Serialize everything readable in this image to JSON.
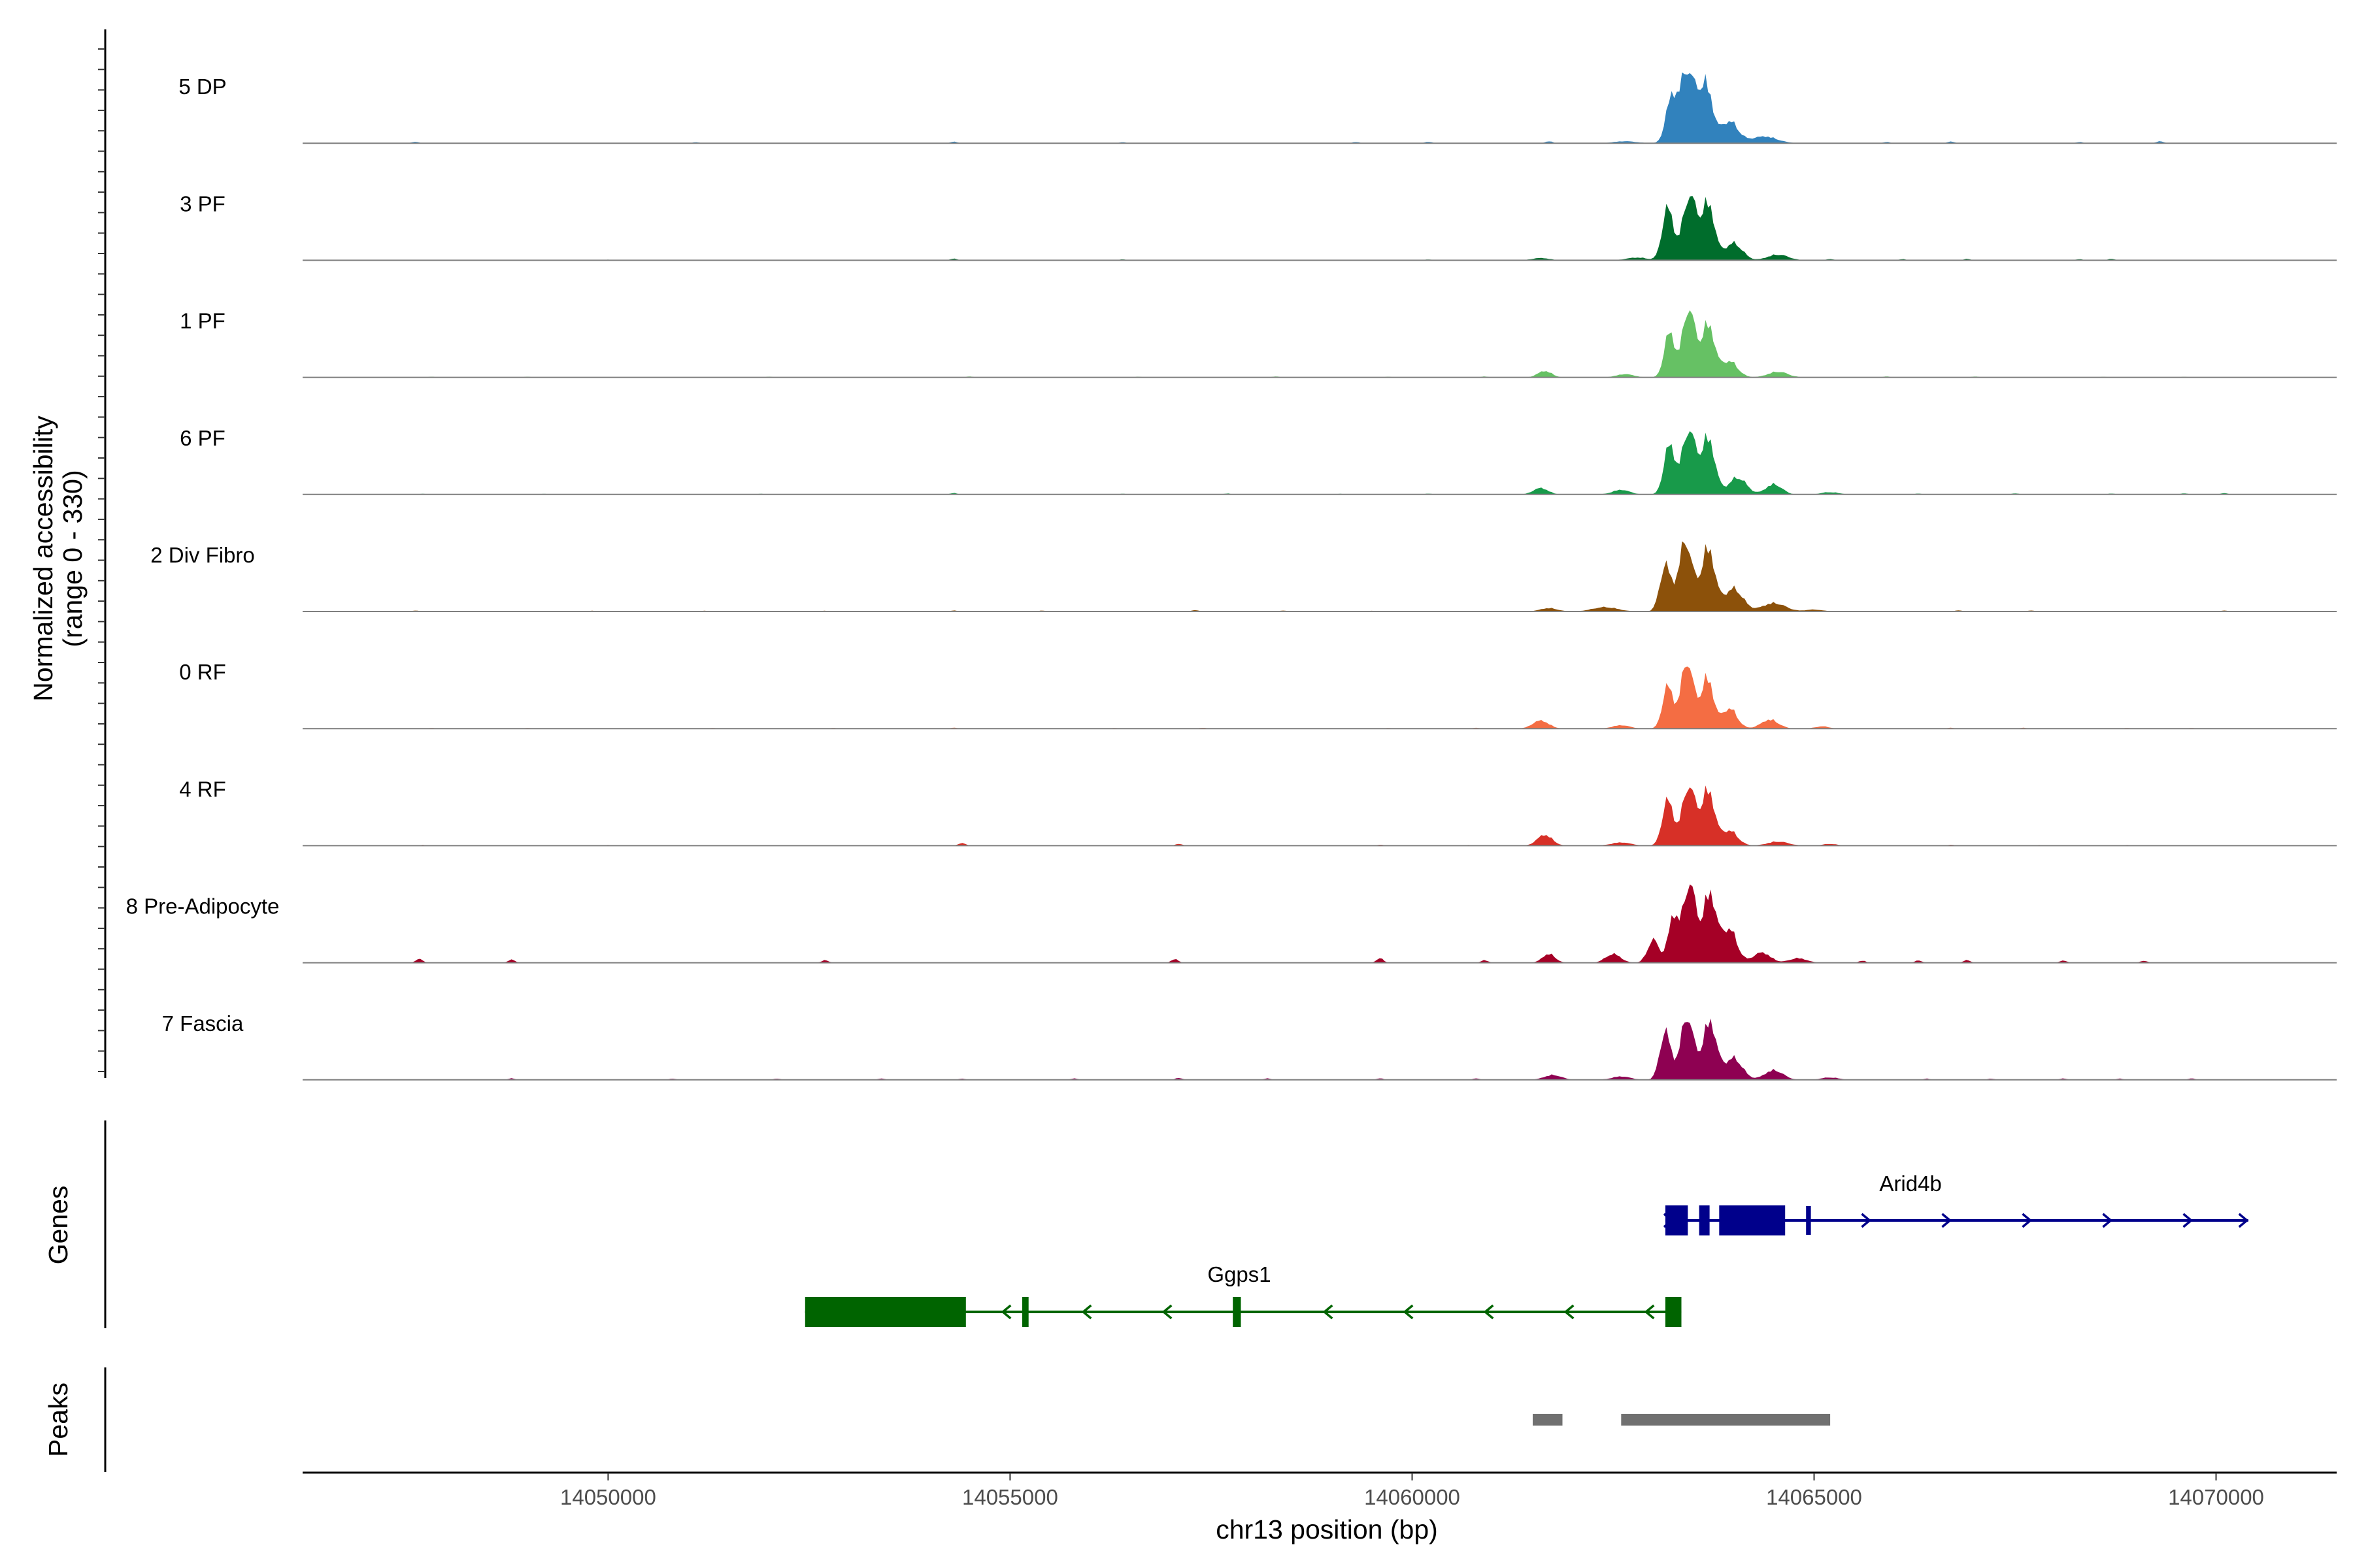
{
  "chart_data": {
    "type": "area",
    "title": "",
    "xlabel": "chr13 position (bp)",
    "ylabel": "Normalized accessibility",
    "ylabel_range": "(range 0 - 330)",
    "ylim": [
      0,
      330
    ],
    "xlim": [
      14046200,
      14071500
    ],
    "x_ticks": [
      14050000,
      14055000,
      14060000,
      14065000,
      14070000
    ],
    "x_tick_labels": [
      "14050000",
      "14055000",
      "14060000",
      "14065000",
      "14070000"
    ],
    "tracks": [
      {
        "name": "5 DP",
        "color": "#3182bd",
        "scale": 0.95,
        "peaks": [
          [
            14063220,
            170,
            95
          ],
          [
            14063420,
            300,
            130
          ],
          [
            14063650,
            240,
            120
          ],
          [
            14063950,
            90,
            150
          ],
          [
            14064380,
            28,
            220
          ],
          [
            14062650,
            8,
            200
          ]
        ],
        "small": [
          [
            14047600,
            6
          ],
          [
            14051100,
            4
          ],
          [
            14054300,
            6
          ],
          [
            14056400,
            4
          ],
          [
            14059300,
            5
          ],
          [
            14060200,
            6
          ],
          [
            14061700,
            8
          ],
          [
            14065900,
            5
          ],
          [
            14066700,
            7
          ],
          [
            14068300,
            5
          ],
          [
            14069300,
            8
          ]
        ]
      },
      {
        "name": "3 PF",
        "color": "#006d2c",
        "scale": 0.9,
        "peaks": [
          [
            14063180,
            230,
            95
          ],
          [
            14063450,
            280,
            120
          ],
          [
            14063680,
            245,
            115
          ],
          [
            14064000,
            75,
            150
          ],
          [
            14064550,
            25,
            180
          ],
          [
            14061600,
            10,
            150
          ],
          [
            14062800,
            12,
            180
          ]
        ],
        "small": [
          [
            14050000,
            3
          ],
          [
            14054300,
            7
          ],
          [
            14056400,
            4
          ],
          [
            14060200,
            4
          ],
          [
            14065200,
            6
          ],
          [
            14066100,
            5
          ],
          [
            14066900,
            6
          ],
          [
            14068300,
            5
          ],
          [
            14068700,
            6
          ]
        ]
      },
      {
        "name": "1 PF",
        "color": "#66c164",
        "scale": 0.9,
        "peaks": [
          [
            14063200,
            195,
            90
          ],
          [
            14063440,
            300,
            110
          ],
          [
            14063680,
            230,
            115
          ],
          [
            14063950,
            70,
            140
          ],
          [
            14064550,
            25,
            170
          ],
          [
            14061650,
            28,
            120
          ],
          [
            14062650,
            14,
            150
          ]
        ],
        "small": [
          [
            14047800,
            3
          ],
          [
            14049000,
            3
          ],
          [
            14052000,
            3
          ],
          [
            14054500,
            4
          ],
          [
            14056600,
            3
          ],
          [
            14058300,
            4
          ],
          [
            14059700,
            3
          ],
          [
            14060900,
            4
          ],
          [
            14065900,
            4
          ],
          [
            14067000,
            4
          ],
          [
            14068600,
            3
          ],
          [
            14069600,
            3
          ],
          [
            14070400,
            3
          ]
        ]
      },
      {
        "name": "6 PF",
        "color": "#189a4a",
        "scale": 0.9,
        "peaks": [
          [
            14063200,
            215,
            95
          ],
          [
            14063440,
            280,
            115
          ],
          [
            14063680,
            245,
            120
          ],
          [
            14064050,
            75,
            150
          ],
          [
            14064500,
            45,
            140
          ],
          [
            14061600,
            28,
            130
          ],
          [
            14062600,
            20,
            150
          ],
          [
            14065200,
            10,
            150
          ]
        ],
        "small": [
          [
            14047700,
            3
          ],
          [
            14049200,
            3
          ],
          [
            14051900,
            3
          ],
          [
            14054300,
            6
          ],
          [
            14056400,
            3
          ],
          [
            14057700,
            4
          ],
          [
            14059100,
            3
          ],
          [
            14060200,
            4
          ],
          [
            14066300,
            4
          ],
          [
            14067500,
            5
          ],
          [
            14068700,
            4
          ],
          [
            14069600,
            5
          ],
          [
            14070100,
            6
          ]
        ]
      },
      {
        "name": "2 Div Fibro",
        "color": "#8c510a",
        "scale": 0.95,
        "peaks": [
          [
            14063150,
            190,
            95
          ],
          [
            14063400,
            290,
            120
          ],
          [
            14063680,
            260,
            120
          ],
          [
            14064000,
            95,
            160
          ],
          [
            14064500,
            35,
            200
          ],
          [
            14062400,
            18,
            220
          ],
          [
            14061700,
            14,
            150
          ],
          [
            14065000,
            8,
            150
          ]
        ],
        "small": [
          [
            14047600,
            4
          ],
          [
            14049800,
            3
          ],
          [
            14051200,
            3
          ],
          [
            14052700,
            3
          ],
          [
            14054300,
            4
          ],
          [
            14055400,
            4
          ],
          [
            14057300,
            6
          ],
          [
            14058400,
            4
          ],
          [
            14059500,
            3
          ],
          [
            14066800,
            5
          ],
          [
            14067700,
            4
          ],
          [
            14069400,
            3
          ],
          [
            14070100,
            4
          ]
        ]
      },
      {
        "name": "0 RF",
        "color": "#f46d43",
        "scale": 0.88,
        "peaks": [
          [
            14063180,
            190,
            90
          ],
          [
            14063420,
            300,
            110
          ],
          [
            14063670,
            225,
            110
          ],
          [
            14063950,
            90,
            130
          ],
          [
            14064450,
            40,
            150
          ],
          [
            14061600,
            36,
            140
          ],
          [
            14062600,
            15,
            150
          ],
          [
            14065100,
            10,
            120
          ]
        ],
        "small": [
          [
            14047800,
            3
          ],
          [
            14049000,
            3
          ],
          [
            14051300,
            3
          ],
          [
            14052800,
            3
          ],
          [
            14054300,
            4
          ],
          [
            14056300,
            3
          ],
          [
            14057400,
            4
          ],
          [
            14059700,
            3
          ],
          [
            14060800,
            4
          ],
          [
            14066700,
            4
          ],
          [
            14067600,
            4
          ],
          [
            14068900,
            3
          ],
          [
            14069700,
            3
          ]
        ]
      },
      {
        "name": "4 RF",
        "color": "#d73027",
        "scale": 0.9,
        "peaks": [
          [
            14063180,
            200,
            95
          ],
          [
            14063440,
            260,
            115
          ],
          [
            14063680,
            240,
            115
          ],
          [
            14063950,
            65,
            140
          ],
          [
            14064550,
            18,
            180
          ],
          [
            14061650,
            48,
            130
          ],
          [
            14062600,
            14,
            170
          ],
          [
            14065200,
            8,
            120
          ]
        ],
        "small": [
          [
            14047700,
            3
          ],
          [
            14050000,
            3
          ],
          [
            14054400,
            12
          ],
          [
            14057100,
            8
          ],
          [
            14059600,
            4
          ],
          [
            14060700,
            3
          ],
          [
            14066700,
            4
          ],
          [
            14067800,
            3
          ],
          [
            14068900,
            3
          ]
        ]
      },
      {
        "name": "8 Pre-Adipocyte",
        "color": "#a50026",
        "scale": 1.0,
        "peaks": [
          [
            14063000,
            90,
            100
          ],
          [
            14063250,
            180,
            90
          ],
          [
            14063450,
            310,
            110
          ],
          [
            14063700,
            270,
            120
          ],
          [
            14063950,
            130,
            130
          ],
          [
            14064350,
            40,
            150
          ],
          [
            14062500,
            35,
            130
          ],
          [
            14061700,
            35,
            110
          ],
          [
            14064800,
            18,
            150
          ]
        ],
        "small": [
          [
            14047650,
            15
          ],
          [
            14048800,
            12
          ],
          [
            14052700,
            10
          ],
          [
            14057050,
            14
          ],
          [
            14059600,
            18
          ],
          [
            14060900,
            10
          ],
          [
            14065600,
            8
          ],
          [
            14066300,
            9
          ],
          [
            14066900,
            10
          ],
          [
            14068100,
            9
          ],
          [
            14069100,
            8
          ]
        ]
      },
      {
        "name": "7 Fascia",
        "color": "#8e0152",
        "scale": 0.95,
        "peaks": [
          [
            14063150,
            200,
            95
          ],
          [
            14063420,
            260,
            115
          ],
          [
            14063700,
            240,
            120
          ],
          [
            14064000,
            90,
            150
          ],
          [
            14064500,
            40,
            160
          ],
          [
            14061750,
            20,
            150
          ],
          [
            14062600,
            14,
            160
          ],
          [
            14065200,
            10,
            150
          ]
        ],
        "small": [
          [
            14048800,
            6
          ],
          [
            14050800,
            5
          ],
          [
            14052100,
            5
          ],
          [
            14053400,
            6
          ],
          [
            14054400,
            5
          ],
          [
            14055800,
            6
          ],
          [
            14057100,
            8
          ],
          [
            14058200,
            6
          ],
          [
            14059600,
            6
          ],
          [
            14060800,
            6
          ],
          [
            14066400,
            5
          ],
          [
            14067200,
            5
          ],
          [
            14068100,
            6
          ],
          [
            14068800,
            5
          ],
          [
            14069700,
            6
          ]
        ]
      }
    ],
    "genes_label": "Genes",
    "genes": [
      {
        "name": "Arid4b",
        "strand": "+",
        "start": 14063150,
        "end": 14070400,
        "color": "#00008b",
        "exons": [
          [
            14063150,
            14063430
          ],
          [
            14063570,
            14063700
          ],
          [
            14063820,
            14064640
          ],
          [
            14064900,
            14064960
          ]
        ]
      },
      {
        "name": "Ggps1",
        "strand": "-",
        "start": 14052450,
        "end": 14063350,
        "color": "#006400",
        "exons": [
          [
            14052450,
            14054450
          ],
          [
            14055150,
            14055230
          ],
          [
            14057770,
            14057870
          ],
          [
            14063150,
            14063350
          ]
        ]
      }
    ],
    "peaks_label": "Peaks",
    "peak_color": "#707070",
    "peak_regions": [
      [
        14061500,
        14061870
      ],
      [
        14062600,
        14065200
      ]
    ]
  }
}
